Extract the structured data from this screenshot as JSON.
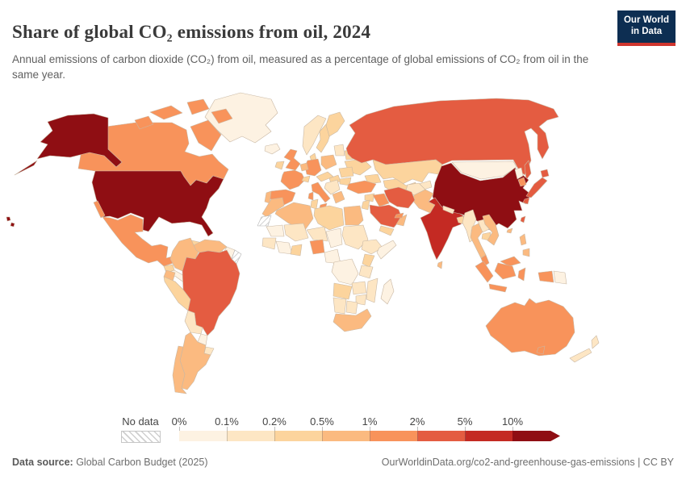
{
  "header": {
    "title": "Share of global CO₂ emissions from oil, 2024",
    "subtitle": "Annual emissions of carbon dioxide (CO₂) from oil, measured as a percentage of global emissions of CO₂ from oil in the same year.",
    "logo": {
      "line1": "Our World",
      "line2": "in Data"
    }
  },
  "legend": {
    "no_data_label": "No data",
    "tick_labels": [
      "0%",
      "0.1%",
      "0.2%",
      "0.5%",
      "1%",
      "2%",
      "5%",
      "10%"
    ]
  },
  "footer": {
    "source_label": "Data source:",
    "source_text": " Global Carbon Budget (2025)",
    "right_text": "OurWorldinData.org/co2-and-greenhouse-gas-emissions | CC BY"
  },
  "chart_data": {
    "type": "choropleth-map",
    "title": "Share of global CO₂ emissions from oil, 2024",
    "year": 2024,
    "unit": "% of global CO₂ emissions from oil",
    "legend_position": "bottom",
    "bins": [
      {
        "label": "0–0.1%",
        "color": "#fdf2e2"
      },
      {
        "label": "0.1–0.2%",
        "color": "#fde6c4"
      },
      {
        "label": "0.2–0.5%",
        "color": "#fcd49d"
      },
      {
        "label": "0.5–1%",
        "color": "#fbba80"
      },
      {
        "label": "1–2%",
        "color": "#f8935b"
      },
      {
        "label": "2–5%",
        "color": "#e45c41"
      },
      {
        "label": "5–10%",
        "color": "#c42a23"
      },
      {
        "label": ">10%",
        "color": "#8f0e13"
      }
    ],
    "no_data_style": "hatched",
    "regions": {
      "greenland": {
        "label": "Greenland",
        "bin": 0
      },
      "iceland": {
        "label": "Iceland",
        "bin": 0
      },
      "canada": {
        "label": "Canada",
        "bin": 4
      },
      "united-states": {
        "label": "United States",
        "bin": 7
      },
      "mexico": {
        "label": "Mexico",
        "bin": 4
      },
      "guatemala": {
        "label": "Guatemala",
        "bin": 2
      },
      "central-america": {
        "label": "Central America",
        "bin": 0
      },
      "cuba": {
        "label": "Cuba",
        "bin": 2
      },
      "hispaniola": {
        "label": "Hispaniola",
        "bin": 1
      },
      "colombia": {
        "label": "Colombia",
        "bin": 3
      },
      "venezuela": {
        "label": "Venezuela",
        "bin": 3
      },
      "guyana": {
        "label": "Guyana",
        "bin": 0
      },
      "french-guiana-suriname": {
        "label": "Suriname & French Guiana",
        "bin": null
      },
      "ecuador": {
        "label": "Ecuador",
        "bin": 3
      },
      "peru": {
        "label": "Peru",
        "bin": 2
      },
      "brazil": {
        "label": "Brazil",
        "bin": 5
      },
      "bolivia": {
        "label": "Bolivia",
        "bin": 1
      },
      "paraguay": {
        "label": "Paraguay",
        "bin": 0
      },
      "uruguay": {
        "label": "Uruguay",
        "bin": 1
      },
      "argentina": {
        "label": "Argentina",
        "bin": 3
      },
      "chile": {
        "label": "Chile",
        "bin": 3
      },
      "united-kingdom": {
        "label": "United Kingdom",
        "bin": 4
      },
      "ireland": {
        "label": "Ireland",
        "bin": 2
      },
      "norway": {
        "label": "Norway",
        "bin": 1
      },
      "sweden": {
        "label": "Sweden",
        "bin": 2
      },
      "finland": {
        "label": "Finland",
        "bin": 2
      },
      "denmark": {
        "label": "Denmark",
        "bin": 2
      },
      "baltics": {
        "label": "Baltic states",
        "bin": 1
      },
      "belarus": {
        "label": "Belarus",
        "bin": 2
      },
      "ukraine": {
        "label": "Ukraine",
        "bin": 2
      },
      "poland": {
        "label": "Poland",
        "bin": 3
      },
      "germany": {
        "label": "Germany",
        "bin": 4
      },
      "benelux": {
        "label": "Netherlands & Belgium",
        "bin": 3
      },
      "france": {
        "label": "France",
        "bin": 4
      },
      "switzerland": {
        "label": "Switzerland",
        "bin": 2
      },
      "czechia-austria": {
        "label": "Czechia & Austria",
        "bin": 2
      },
      "hungary": {
        "label": "Hungary",
        "bin": 2
      },
      "romania": {
        "label": "Romania",
        "bin": 2
      },
      "bulgaria": {
        "label": "Bulgaria",
        "bin": 2
      },
      "balkans": {
        "label": "Balkans",
        "bin": 1
      },
      "greece": {
        "label": "Greece",
        "bin": 3
      },
      "italy": {
        "label": "Italy",
        "bin": 4
      },
      "spain": {
        "label": "Spain",
        "bin": 4
      },
      "portugal": {
        "label": "Portugal",
        "bin": 3
      },
      "russia": {
        "label": "Russia",
        "bin": 5
      },
      "kazakhstan": {
        "label": "Kazakhstan",
        "bin": 2
      },
      "caucasus": {
        "label": "Caucasus",
        "bin": 2
      },
      "uzbekistan-turkmenistan": {
        "label": "Uzbekistan & Turkmenistan",
        "bin": 2
      },
      "kyrgyzstan-tajikistan": {
        "label": "Kyrgyzstan & Tajikistan",
        "bin": 1
      },
      "mongolia": {
        "label": "Mongolia",
        "bin": 0
      },
      "china": {
        "label": "China",
        "bin": 7
      },
      "taiwan": {
        "label": "Taiwan",
        "bin": 5
      },
      "hainan": {
        "label": "Hainan",
        "bin": 3
      },
      "north-korea": {
        "label": "North Korea",
        "bin": 0
      },
      "south-korea": {
        "label": "South Korea",
        "bin": 4
      },
      "japan": {
        "label": "Japan",
        "bin": 5
      },
      "afghanistan": {
        "label": "Afghanistan",
        "bin": 1
      },
      "pakistan": {
        "label": "Pakistan",
        "bin": 3
      },
      "india": {
        "label": "India",
        "bin": 6
      },
      "sri-lanka": {
        "label": "Sri Lanka",
        "bin": 3
      },
      "nepal": {
        "label": "Nepal",
        "bin": 1
      },
      "bangladesh": {
        "label": "Bangladesh",
        "bin": 2
      },
      "myanmar": {
        "label": "Myanmar",
        "bin": 1
      },
      "thailand": {
        "label": "Thailand",
        "bin": 3
      },
      "laos": {
        "label": "Laos",
        "bin": 1
      },
      "cambodia": {
        "label": "Cambodia",
        "bin": 2
      },
      "vietnam": {
        "label": "Vietnam",
        "bin": 3
      },
      "malaysia": {
        "label": "Malaysia",
        "bin": 4
      },
      "indonesia": {
        "label": "Indonesia",
        "bin": 4
      },
      "papua-new-guinea": {
        "label": "Papua New Guinea",
        "bin": 0
      },
      "philippines": {
        "label": "Philippines",
        "bin": 3
      },
      "turkey": {
        "label": "Turkey",
        "bin": 4
      },
      "syria": {
        "label": "Syria",
        "bin": 2
      },
      "jordan-israel": {
        "label": "Jordan & Israel",
        "bin": 2
      },
      "iraq": {
        "label": "Iraq",
        "bin": 4
      },
      "iran": {
        "label": "Iran",
        "bin": 5
      },
      "saudi-arabia": {
        "label": "Saudi Arabia",
        "bin": 5
      },
      "yemen": {
        "label": "Yemen",
        "bin": 2
      },
      "oman": {
        "label": "Oman",
        "bin": 3
      },
      "uae-qatar": {
        "label": "UAE & Qatar",
        "bin": 4
      },
      "morocco": {
        "label": "Morocco",
        "bin": 3
      },
      "western-sahara": {
        "label": "Western Sahara",
        "bin": null
      },
      "algeria": {
        "label": "Algeria",
        "bin": 3
      },
      "tunisia": {
        "label": "Tunisia",
        "bin": 2
      },
      "libya": {
        "label": "Libya",
        "bin": 2
      },
      "egypt": {
        "label": "Egypt",
        "bin": 3
      },
      "sudan": {
        "label": "Sudan",
        "bin": 1
      },
      "chad": {
        "label": "Chad",
        "bin": 0
      },
      "niger": {
        "label": "Niger",
        "bin": 1
      },
      "mali": {
        "label": "Mali",
        "bin": 1
      },
      "mauritania": {
        "label": "Mauritania",
        "bin": 0
      },
      "senegal-guinea": {
        "label": "Senegal & Guinea",
        "bin": 1
      },
      "west-africa": {
        "label": "West African coast",
        "bin": 0
      },
      "ghana": {
        "label": "Ghana & Côte d'Ivoire",
        "bin": 2
      },
      "nigeria": {
        "label": "Nigeria",
        "bin": 4
      },
      "cameroon-central-africa": {
        "label": "Cameroon & Central Africa",
        "bin": 0
      },
      "ethiopia": {
        "label": "Ethiopia",
        "bin": 1
      },
      "somalia": {
        "label": "Somalia",
        "bin": 0
      },
      "kenya": {
        "label": "Kenya",
        "bin": 2
      },
      "tanzania": {
        "label": "Tanzania",
        "bin": 1
      },
      "drc": {
        "label": "DR Congo",
        "bin": 0
      },
      "angola": {
        "label": "Angola",
        "bin": 2
      },
      "zambia": {
        "label": "Zambia",
        "bin": 1
      },
      "mozambique": {
        "label": "Mozambique",
        "bin": 1
      },
      "zimbabwe": {
        "label": "Zimbabwe",
        "bin": 1
      },
      "namibia": {
        "label": "Namibia",
        "bin": 1
      },
      "botswana": {
        "label": "Botswana",
        "bin": 1
      },
      "south-africa": {
        "label": "South Africa",
        "bin": 3
      },
      "madagascar": {
        "label": "Madagascar",
        "bin": 0
      },
      "australia": {
        "label": "Australia",
        "bin": 4
      },
      "new-zealand": {
        "label": "New Zealand",
        "bin": 1
      }
    }
  }
}
